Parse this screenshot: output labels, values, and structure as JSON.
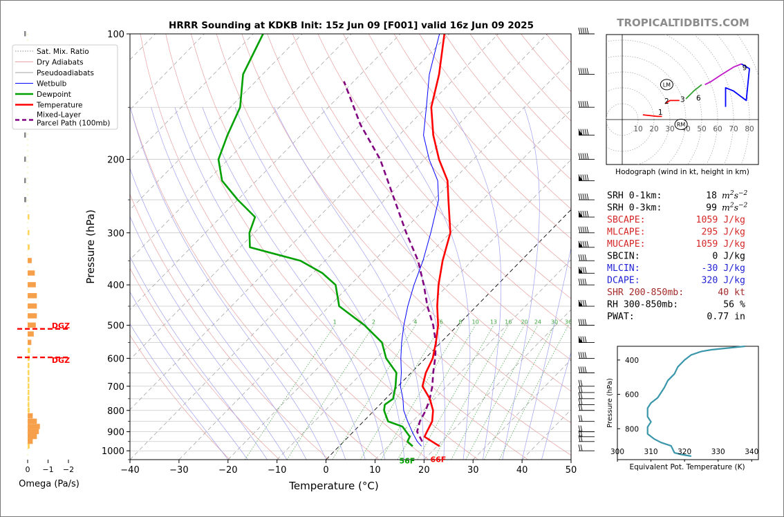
{
  "chart_data": [
    {
      "type": "line",
      "title": "HRRR Sounding at KDKB Init: 15z Jun 09 [F001] valid 16z Jun 09 2025",
      "xlabel": "Temperature (°C)",
      "ylabel": "Pressure (hPa)",
      "xlim": [
        -40,
        50
      ],
      "ylim": [
        1050,
        100
      ],
      "yscale": "log",
      "skew": true,
      "x_ticks": [
        -40,
        -30,
        -20,
        -10,
        0,
        10,
        20,
        30,
        40,
        50
      ],
      "x_tick_labels": [
        "−40",
        "−30",
        "−20",
        "−10",
        "0",
        "10",
        "20",
        "30",
        "40",
        "50"
      ],
      "y_ticks": [
        1000,
        900,
        800,
        700,
        600,
        500,
        400,
        300,
        200,
        100
      ],
      "legend_placement": "left-outside",
      "legend": [
        "Sat. Mix. Ratio",
        "Dry Adiabats",
        "Pseudoadiabats",
        "Wetbulb",
        "Dewpoint",
        "Temperature",
        "Mixed-Layer\nParcel Path (100mb)"
      ],
      "mixing_ratio_labels": [
        "1",
        "2",
        "4",
        "6",
        "8",
        "10",
        "13",
        "16",
        "20",
        "24",
        "30",
        "36"
      ],
      "surface_labels": {
        "dewpoint": "56F",
        "temperature": "66F"
      },
      "colors": {
        "temperature": "#ff0000",
        "dewpoint": "#00a000",
        "wetbulb": "#0000ff",
        "parcel": "#800080"
      },
      "series": [
        {
          "name": "Temperature",
          "points": [
            [
              20.5,
              975
            ],
            [
              18,
              950
            ],
            [
              15.5,
              925
            ],
            [
              15,
              900
            ],
            [
              14,
              850
            ],
            [
              12,
              800
            ],
            [
              9,
              750
            ],
            [
              5,
              700
            ],
            [
              3,
              650
            ],
            [
              1.5,
              600
            ],
            [
              -1,
              550
            ],
            [
              -4,
              500
            ],
            [
              -8,
              450
            ],
            [
              -12,
              400
            ],
            [
              -16,
              350
            ],
            [
              -20,
              300
            ],
            [
              -27,
              250
            ],
            [
              -31,
              225
            ],
            [
              -37,
              200
            ],
            [
              -43,
              175
            ],
            [
              -49,
              150
            ],
            [
              -54,
              125
            ],
            [
              -61,
              100
            ]
          ]
        },
        {
          "name": "Dewpoint",
          "points": [
            [
              15,
              975
            ],
            [
              13,
              950
            ],
            [
              12.5,
              925
            ],
            [
              9,
              875
            ],
            [
              5,
              850
            ],
            [
              2,
              800
            ],
            [
              1,
              775
            ],
            [
              1.5,
              750
            ],
            [
              -0.5,
              700
            ],
            [
              -3,
              650
            ],
            [
              -8,
              600
            ],
            [
              -12,
              550
            ],
            [
              -19,
              500
            ],
            [
              -28,
              450
            ],
            [
              -33,
              400
            ],
            [
              -38,
              375
            ],
            [
              -45,
              350
            ],
            [
              -58,
              325
            ],
            [
              -61,
              300
            ],
            [
              -63,
              275
            ],
            [
              -70,
              250
            ],
            [
              -77,
              225
            ],
            [
              -82,
              200
            ],
            [
              -85,
              175
            ],
            [
              -88,
              150
            ],
            [
              -94,
              125
            ],
            [
              -98,
              100
            ]
          ]
        },
        {
          "name": "Wetbulb",
          "points": [
            [
              16.8,
              975
            ],
            [
              15,
              950
            ],
            [
              13.5,
              925
            ],
            [
              12,
              900
            ],
            [
              9,
              850
            ],
            [
              6,
              800
            ],
            [
              3.5,
              750
            ],
            [
              0.5,
              700
            ],
            [
              -2,
              650
            ],
            [
              -5,
              600
            ],
            [
              -8,
              550
            ],
            [
              -11,
              500
            ],
            [
              -14,
              450
            ],
            [
              -17,
              400
            ],
            [
              -20,
              350
            ],
            [
              -24,
              300
            ],
            [
              -29,
              250
            ],
            [
              -33,
              225
            ],
            [
              -39,
              200
            ],
            [
              -45,
              175
            ],
            [
              -50,
              150
            ],
            [
              -56,
              125
            ],
            [
              -62,
              100
            ]
          ]
        },
        {
          "name": "Mixed-Layer\nParcel Path (100mb)",
          "points": [
            [
              16,
              950
            ],
            [
              13,
              900
            ],
            [
              11.5,
              850
            ],
            [
              10.5,
              800
            ],
            [
              9,
              750
            ],
            [
              7,
              700
            ],
            [
              4.5,
              650
            ],
            [
              2,
              600
            ],
            [
              -1,
              550
            ],
            [
              -5,
              500
            ],
            [
              -10,
              450
            ],
            [
              -15,
              400
            ],
            [
              -21,
              350
            ],
            [
              -29,
              300
            ],
            [
              -38,
              250
            ],
            [
              -49,
              200
            ],
            [
              -60,
              165
            ],
            [
              -72,
              130
            ]
          ]
        }
      ]
    },
    {
      "type": "bar",
      "xlabel": "Omega (Pa/s)",
      "xlim": [
        0,
        -2
      ],
      "x_tick_labels": [
        "0",
        "−1",
        "−2"
      ],
      "annotations": [
        "DGZ",
        "DGZ"
      ],
      "pressure_levels": [
        975,
        950,
        925,
        900,
        875,
        850,
        825,
        800,
        775,
        750,
        725,
        700,
        675,
        650,
        625,
        600,
        575,
        550,
        525,
        500,
        475,
        450,
        425,
        400,
        375,
        350,
        325,
        300,
        275,
        250,
        225,
        200,
        175,
        150,
        125,
        100
      ],
      "values": [
        -0.1,
        -0.25,
        -0.45,
        -0.55,
        -0.6,
        -0.45,
        -0.25,
        -0.1,
        -0.05,
        -0.02,
        -0.03,
        -0.05,
        -0.08,
        -0.08,
        -0.08,
        -0.1,
        -0.12,
        -0.18,
        -0.3,
        -0.4,
        -0.45,
        -0.45,
        -0.45,
        -0.4,
        -0.35,
        -0.2,
        -0.1,
        -0.05,
        -0.05,
        -0.1,
        -0.05,
        -0.05,
        -0.05,
        -0.05,
        -0.05,
        -0.02
      ],
      "colors": {
        "strong": "#f7a04b",
        "weak": "#ffd45a",
        "upper": "#888888"
      }
    },
    {
      "type": "line",
      "title": "Hodograph (wind in kt, height in km)",
      "xlim": [
        -10,
        85
      ],
      "ylim": [
        -28,
        50
      ],
      "ring_labels": [
        "10",
        "20",
        "30",
        "40",
        "50",
        "60",
        "70",
        "80"
      ],
      "annotations": [
        "LM",
        "RM",
        "1",
        "2",
        "3",
        "6",
        "9"
      ],
      "segments": [
        {
          "color": "#ff0000",
          "points": [
            [
              13,
              3
            ],
            [
              22,
              2
            ],
            [
              25,
              2
            ]
          ]
        },
        {
          "color": "#ff0000",
          "points": [
            [
              27,
              10
            ],
            [
              30,
              12
            ],
            [
              33,
              12
            ],
            [
              36,
              12
            ]
          ]
        },
        {
          "color": "#32a032",
          "points": [
            [
              40,
              13
            ],
            [
              45,
              18
            ],
            [
              50,
              22
            ]
          ]
        },
        {
          "color": "#c018c8",
          "points": [
            [
              52,
              22
            ],
            [
              56,
              24
            ],
            [
              62,
              28
            ],
            [
              70,
              33
            ],
            [
              75,
              35
            ]
          ]
        },
        {
          "color": "#0000ff",
          "points": [
            [
              75,
              35
            ],
            [
              80,
              32
            ],
            [
              78,
              12
            ],
            [
              70,
              18
            ],
            [
              65,
              20
            ],
            [
              65,
              8
            ]
          ]
        }
      ],
      "markers": [
        {
          "label": "LM",
          "x": 28,
          "y": 22
        },
        {
          "label": "RM",
          "x": 37,
          "y": -3
        }
      ]
    },
    {
      "type": "line",
      "xlabel": "Equivalent Pot. Temperature (K)",
      "ylabel": "Pressure (hPa)",
      "xlim": [
        300,
        342
      ],
      "ylim": [
        980,
        320
      ],
      "x_ticks": [
        300,
        310,
        320,
        330,
        340
      ],
      "y_ticks": [
        400,
        600,
        800
      ],
      "color": "#3a96aa",
      "points": [
        [
          322,
          960
        ],
        [
          319,
          950
        ],
        [
          317,
          940
        ],
        [
          316,
          900
        ],
        [
          313,
          880
        ],
        [
          311,
          860
        ],
        [
          309,
          830
        ],
        [
          309,
          790
        ],
        [
          310,
          760
        ],
        [
          309,
          730
        ],
        [
          309,
          680
        ],
        [
          310,
          650
        ],
        [
          312,
          620
        ],
        [
          313,
          590
        ],
        [
          314,
          560
        ],
        [
          315,
          520
        ],
        [
          317,
          480
        ],
        [
          318,
          440
        ],
        [
          320,
          400
        ],
        [
          322,
          370
        ],
        [
          325,
          350
        ],
        [
          328,
          340
        ],
        [
          333,
          330
        ],
        [
          338,
          320
        ]
      ]
    }
  ],
  "watermark": "TROPICALTIDBITS.COM",
  "indices": [
    {
      "label": "SRH 0-1km:",
      "value": "18",
      "unit": "m2s-2",
      "color": "#000000"
    },
    {
      "label": "SRH 0-3km:",
      "value": "99",
      "unit": "m2s-2",
      "color": "#000000"
    },
    {
      "label": "SBCAPE:",
      "value": "1059 J/kg",
      "unit": "",
      "color": "#d62728"
    },
    {
      "label": "MLCAPE:",
      "value": "295 J/kg",
      "unit": "",
      "color": "#d62728"
    },
    {
      "label": "MUCAPE:",
      "value": "1059 J/kg",
      "unit": "",
      "color": "#d62728"
    },
    {
      "label": "SBCIN:",
      "value": "0 J/kg",
      "unit": "",
      "color": "#000000"
    },
    {
      "label": "MLCIN:",
      "value": "-30 J/kg",
      "unit": "",
      "color": "#1f1fd6"
    },
    {
      "label": "DCAPE:",
      "value": "320 J/kg",
      "unit": "",
      "color": "#1f1fd6"
    },
    {
      "label": "SHR 200-850mb:",
      "value": "40 kt",
      "unit": "",
      "color": "#a52a2a"
    },
    {
      "label": "RH 300-850mb:",
      "value": "56 %",
      "unit": "",
      "color": "#000000"
    },
    {
      "label": "PWAT:",
      "value": "0.77 in",
      "unit": "",
      "color": "#000000"
    }
  ]
}
